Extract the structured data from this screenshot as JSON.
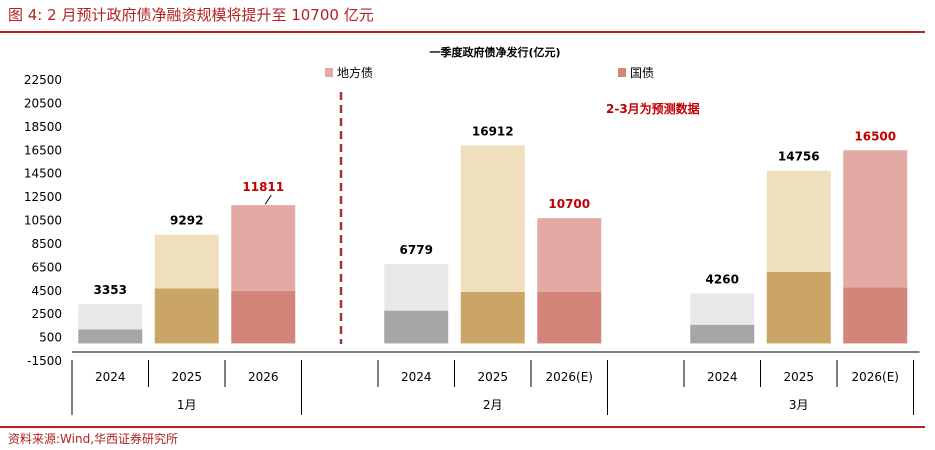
{
  "header": {
    "figure_title": "图 4:   2 月预计政府债净融资规模将提升至 10700 亿元"
  },
  "footer": {
    "source": "资料来源:Wind,华西证券研究所"
  },
  "chart_data": {
    "type": "bar",
    "stacked": true,
    "title": "一季度政府债净发行(亿元)",
    "annotation": "2-3月为预测数据",
    "ylim": [
      -1500,
      22500
    ],
    "yticks": [
      -1500,
      500,
      2500,
      4500,
      6500,
      8500,
      10500,
      12500,
      14500,
      16500,
      18500,
      20500,
      22500
    ],
    "legend": {
      "position": "top",
      "items": [
        "地方债",
        "国债"
      ]
    },
    "groups": [
      {
        "label": "1月",
        "categories": [
          "2024",
          "2025",
          "2026"
        ]
      },
      {
        "label": "2月",
        "categories": [
          "2024",
          "2025",
          "2026(E)"
        ]
      },
      {
        "label": "3月",
        "categories": [
          "2024",
          "2025",
          "2026(E)"
        ]
      }
    ],
    "bars": [
      {
        "group": 0,
        "category": "2024",
        "national": 1200,
        "total": 3353,
        "label": "3353",
        "style": "grey"
      },
      {
        "group": 0,
        "category": "2025",
        "national": 4700,
        "total": 9292,
        "label": "9292",
        "style": "gold"
      },
      {
        "group": 0,
        "category": "2026",
        "national": 4500,
        "total": 11811,
        "label": "11811",
        "style": "red"
      },
      {
        "group": 1,
        "category": "2024",
        "national": 2800,
        "total": 6779,
        "label": "6779",
        "style": "grey"
      },
      {
        "group": 1,
        "category": "2025",
        "national": 4400,
        "total": 16912,
        "label": "16912",
        "style": "gold"
      },
      {
        "group": 1,
        "category": "2026(E)",
        "national": 4400,
        "total": 10700,
        "label": "10700",
        "style": "red"
      },
      {
        "group": 2,
        "category": "2024",
        "national": 1600,
        "total": 4260,
        "label": "4260",
        "style": "grey"
      },
      {
        "group": 2,
        "category": "2025",
        "national": 6100,
        "total": 14756,
        "label": "14756",
        "style": "gold"
      },
      {
        "group": 2,
        "category": "2026(E)",
        "national": 4800,
        "total": 16500,
        "label": "16500",
        "style": "red"
      }
    ],
    "colors": {
      "grey": {
        "national": "#a6a6a6",
        "local": "#e8e8e8"
      },
      "gold": {
        "national": "#cba566",
        "local": "#efdfbf"
      },
      "red": {
        "national": "#d4857a",
        "local": "#e3aaa4"
      },
      "legend_local": "#e3aaa4",
      "legend_national": "#d4857a",
      "highlight_label": "#c00000",
      "divider": "#a0382e"
    }
  }
}
